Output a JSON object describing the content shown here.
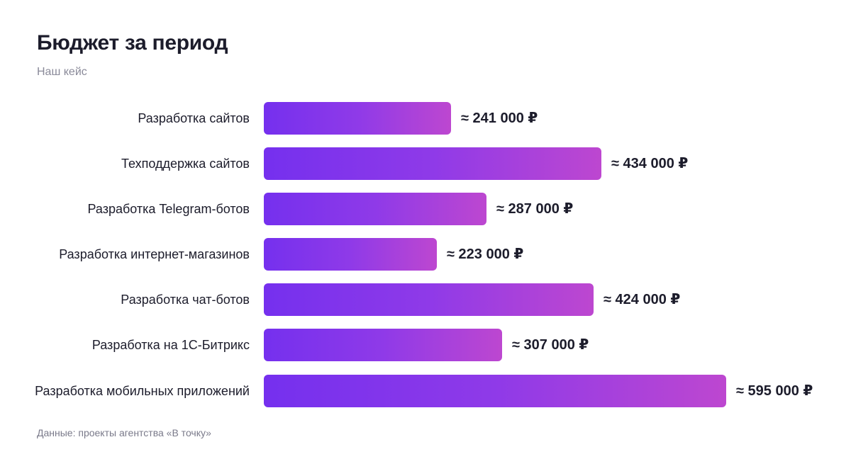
{
  "header": {
    "title": "Бюджет за период",
    "subtitle": "Наш кейс"
  },
  "footer": {
    "source": "Данные: проекты агентства «В точку»"
  },
  "chart_data": {
    "type": "bar",
    "orientation": "horizontal",
    "title": "Бюджет за период",
    "subtitle": "Наш кейс",
    "categories": [
      "Разработка сайтов",
      "Техподдержка сайтов",
      "Разработка Telegram-ботов",
      "Разработка интернет-магазинов",
      "Разработка чат-ботов",
      "Разработка на 1С-Битрикс",
      "Разработка мобильных приложений"
    ],
    "values": [
      241000,
      434000,
      287000,
      223000,
      424000,
      307000,
      595000
    ],
    "data_labels": [
      "≈ 241 000 ₽",
      "≈ 434 000 ₽",
      "≈ 287 000 ₽",
      "≈ 223 000 ₽",
      "≈ 424 000 ₽",
      "≈ 307 000 ₽",
      "≈ 595 000 ₽"
    ],
    "unit": "₽",
    "xlim": [
      0,
      595000
    ],
    "grid": false,
    "legend": "none",
    "colors": {
      "bar_gradient_start": "#7530ee",
      "bar_gradient_end": "#bd47d0"
    }
  }
}
